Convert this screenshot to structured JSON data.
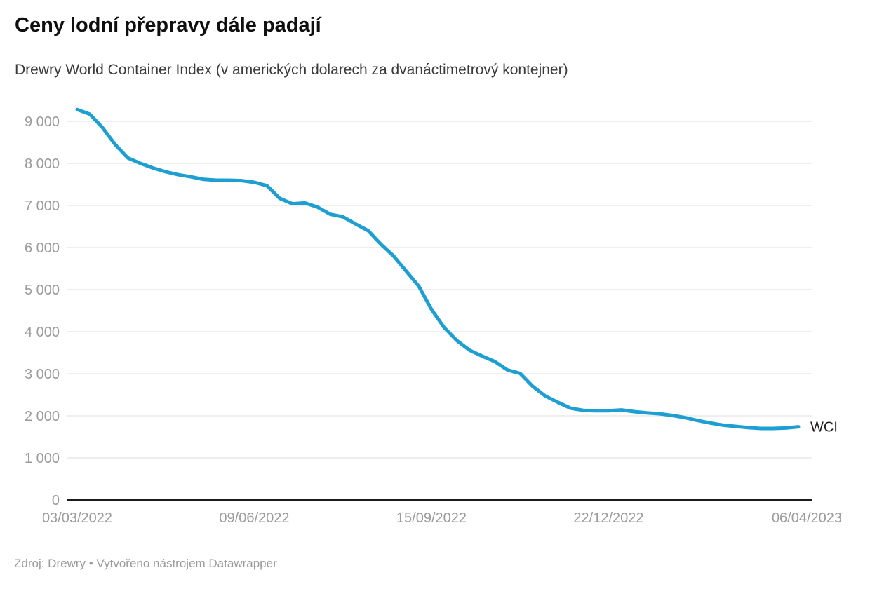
{
  "header": {
    "title": "Ceny lodní přepravy dále padají",
    "subtitle": "Drewry World Container Index (v amerických dolarech za dvanáctimetrový kontejner)"
  },
  "footer": {
    "text": "Zdroj: Drewry • Vytvořeno nástrojem Datawrapper"
  },
  "chart_data": {
    "type": "line",
    "title": "Ceny lodní přepravy dále padají",
    "subtitle": "Drewry World Container Index (v amerických dolarech za dvanáctimetrový kontejner)",
    "x": [
      "03/03/2022",
      "10/03/2022",
      "17/03/2022",
      "24/03/2022",
      "31/03/2022",
      "07/04/2022",
      "14/04/2022",
      "21/04/2022",
      "28/04/2022",
      "05/05/2022",
      "12/05/2022",
      "19/05/2022",
      "26/05/2022",
      "02/06/2022",
      "09/06/2022",
      "16/06/2022",
      "23/06/2022",
      "30/06/2022",
      "07/07/2022",
      "14/07/2022",
      "21/07/2022",
      "28/07/2022",
      "04/08/2022",
      "11/08/2022",
      "18/08/2022",
      "25/08/2022",
      "01/09/2022",
      "08/09/2022",
      "15/09/2022",
      "22/09/2022",
      "29/09/2022",
      "06/10/2022",
      "13/10/2022",
      "20/10/2022",
      "27/10/2022",
      "03/11/2022",
      "10/11/2022",
      "17/11/2022",
      "24/11/2022",
      "01/12/2022",
      "08/12/2022",
      "15/12/2022",
      "22/12/2022",
      "29/12/2022",
      "05/01/2023",
      "12/01/2023",
      "19/01/2023",
      "26/01/2023",
      "02/02/2023",
      "09/02/2023",
      "16/02/2023",
      "23/02/2023",
      "02/03/2023",
      "09/03/2023",
      "16/03/2023",
      "23/03/2023",
      "30/03/2023",
      "06/04/2023"
    ],
    "series": [
      {
        "name": "WCI",
        "values": [
          9280,
          9170,
          8850,
          8450,
          8130,
          8000,
          7890,
          7800,
          7730,
          7680,
          7620,
          7600,
          7600,
          7590,
          7550,
          7470,
          7170,
          7040,
          7060,
          6960,
          6790,
          6730,
          6560,
          6400,
          6080,
          5800,
          5440,
          5080,
          4530,
          4100,
          3790,
          3560,
          3420,
          3290,
          3090,
          3010,
          2700,
          2470,
          2320,
          2180,
          2130,
          2120,
          2120,
          2140,
          2100,
          2070,
          2050,
          2010,
          1960,
          1890,
          1830,
          1780,
          1750,
          1720,
          1700,
          1700,
          1710,
          1740
        ]
      }
    ],
    "x_tick_indices": [
      0,
      14,
      28,
      42,
      57
    ],
    "x_tick_labels": [
      "03/03/2022",
      "09/06/2022",
      "15/09/2022",
      "22/12/2022",
      "06/04/2023"
    ],
    "y_tick_values": [
      0,
      1000,
      2000,
      3000,
      4000,
      5000,
      6000,
      7000,
      8000,
      9000
    ],
    "y_tick_labels": [
      "0",
      "1 000",
      "2 000",
      "3 000",
      "4 000",
      "5 000",
      "6 000",
      "7 000",
      "8 000",
      "9 000"
    ],
    "ylim": [
      0,
      9550
    ],
    "xlabel": "",
    "ylabel": "",
    "grid": "horizontal",
    "legend": "direct-label-at-line-end",
    "colors": {
      "line": "#1E9FD2",
      "axis_text": "#9b9b9b",
      "gridline": "#dddddd",
      "baseline": "#1a1a1a",
      "series_label": "#1a1a1a"
    }
  }
}
